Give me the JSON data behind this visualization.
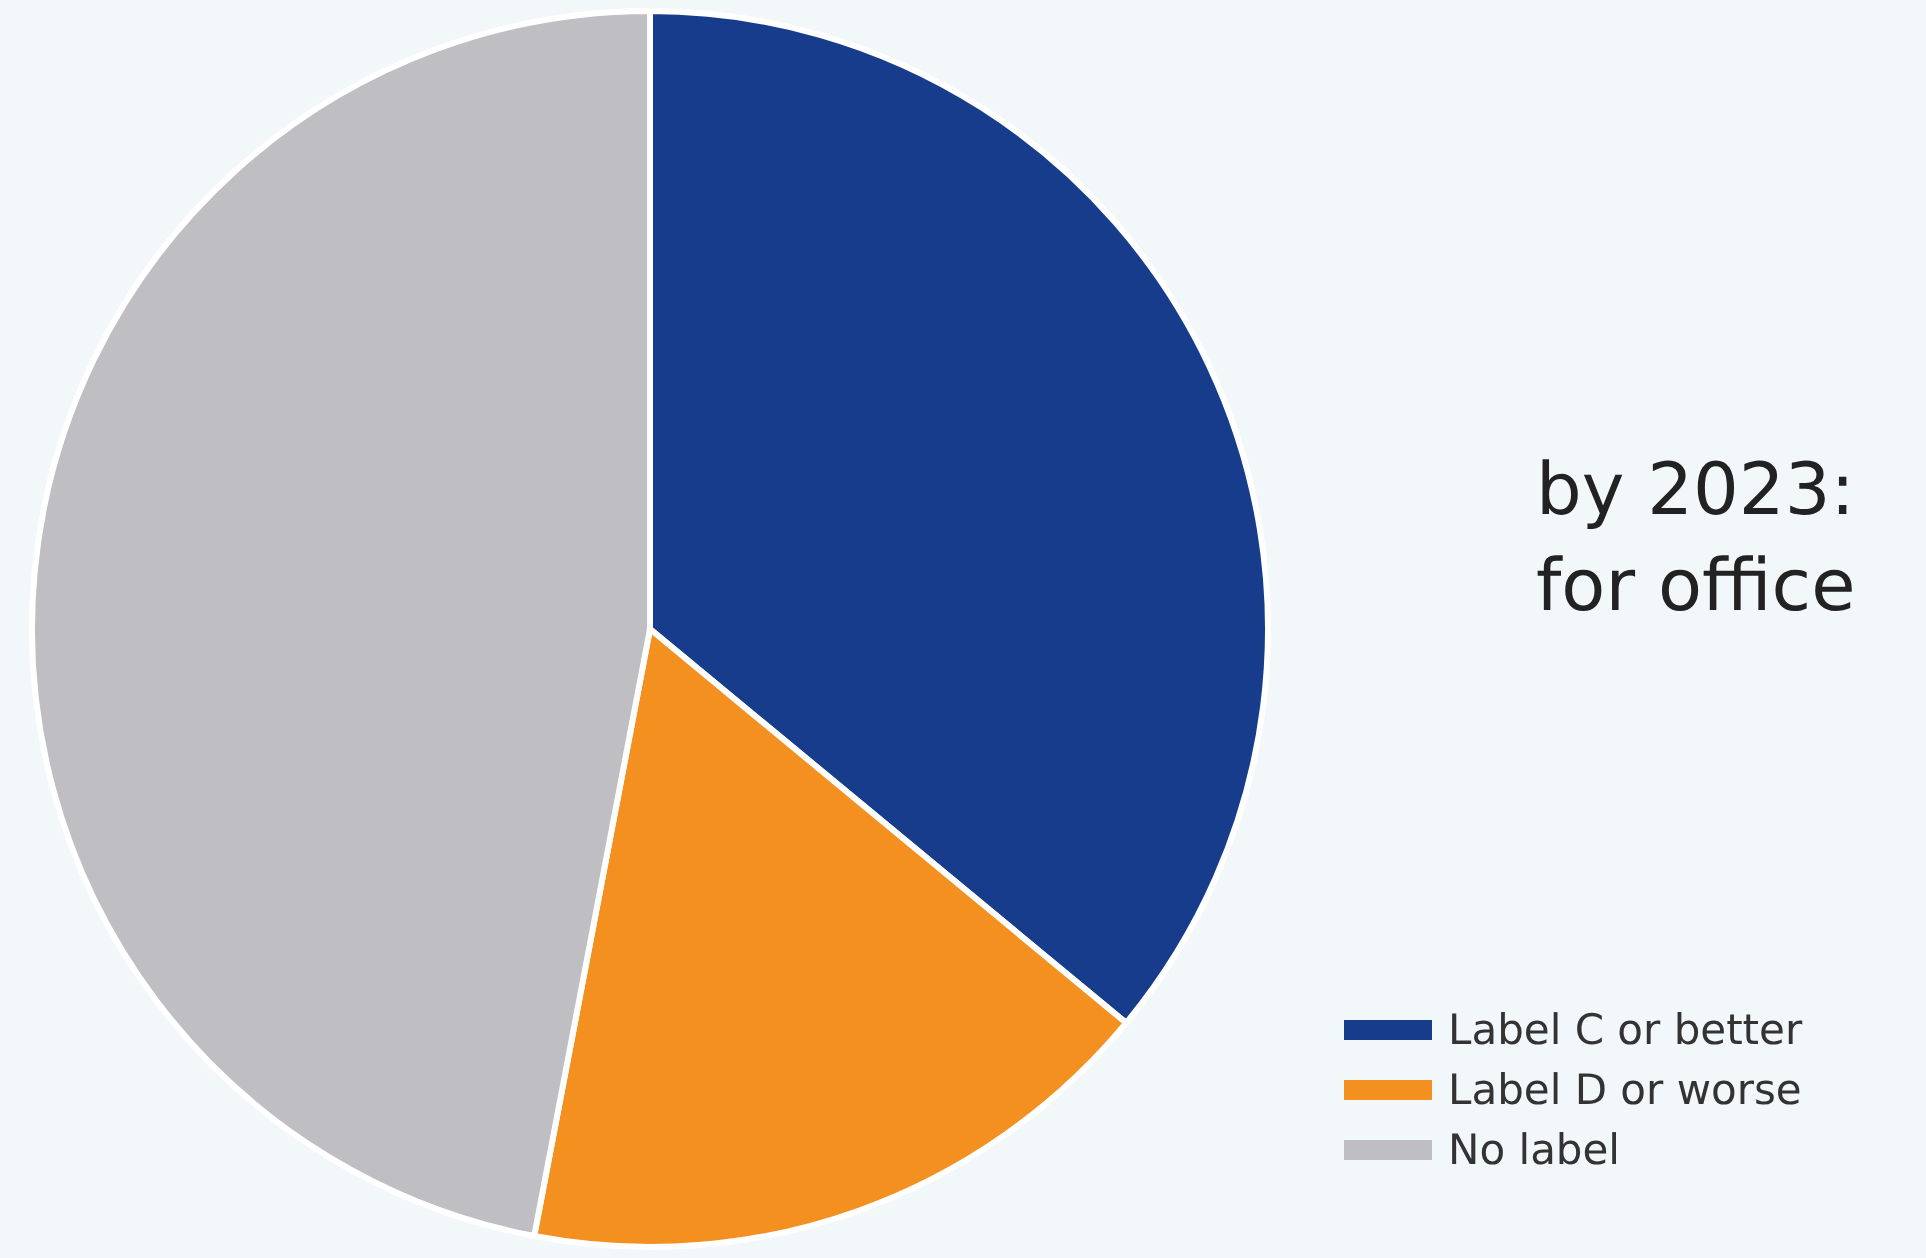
{
  "chart_data": {
    "type": "pie",
    "categories": [
      "Label C or better",
      "Label D or worse",
      "No label"
    ],
    "values": [
      36,
      17,
      47
    ],
    "colors": [
      "#173c8c",
      "#f39020",
      "#bfbfc3"
    ],
    "legend": "bottom right",
    "annotations": [
      "by 2023:",
      "for office"
    ]
  }
}
